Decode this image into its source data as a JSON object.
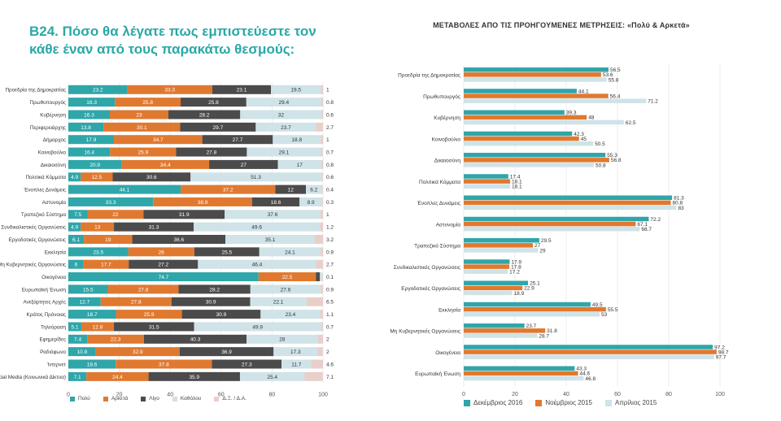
{
  "left_title": "B24. Πόσο θα λέγατε πως εμπιστεύεστε τον κάθε έναν από τους παρακάτω θεσμούς:",
  "right_title": "ΜΕΤΑΒΟΛΕΣ ΑΠΟ ΤΙΣ ΠΡΟΗΓΟΥΜΕΝΕΣ ΜΕΤΡΗΣΕΙΣ: «Πολύ & Αρκετά»",
  "colors": {
    "s1": "#2fa6a9",
    "s2": "#e07930",
    "s3": "#4b4b4b",
    "s4": "#cfe3e8",
    "s5": "#e9cfc9",
    "r1": "#2fa6a9",
    "r2": "#e07930",
    "r3": "#cfe3e8"
  },
  "chart_data": [
    {
      "type": "bar",
      "orientation": "horizontal",
      "stacked": true,
      "title": "B24. Πόσο θα λέγατε πως εμπιστεύεστε τον κάθε έναν από τους παρακάτω θεσμούς:",
      "xlim": [
        0,
        100
      ],
      "xticks": [
        "0",
        "20",
        "40",
        "60",
        "80",
        "100"
      ],
      "categories": [
        "Προεδρία της Δημοκρατίας",
        "Πρωθυπουργός",
        "Κυβέρνηση",
        "Περιφερειάρχης",
        "Δήμαρχος",
        "Κοινοβούλιο",
        "Δικαιοσύνη",
        "Πολιτικά Κόμματα",
        "Ένοπλες Δυνάμεις",
        "Αστυνομία",
        "Τραπεζικό Σύστημα",
        "Συνδικαλιστικές Οργανώσεις",
        "Εργοδοτικές Οργανώσεις",
        "Εκκλησία",
        "Μη Κυβερνητικές Οργανώσεις",
        "Οικογένεια",
        "Ευρωπαϊκή Ένωση",
        "Ανεξάρτητες Αρχές",
        "Κράτος Πρόνοιας",
        "Τηλεόραση",
        "Εφημερίδες",
        "Ραδιόφωνο",
        "Ίντερνετ",
        "Social Media (Κοινωνικά Δίκτυα)"
      ],
      "series": [
        {
          "name": "Πολύ",
          "values": [
            23.2,
            18.3,
            16.3,
            13.8,
            17.9,
            16.4,
            20.9,
            4.9,
            44.1,
            33.3,
            7.5,
            4.9,
            6.1,
            23.5,
            6,
            74.7,
            15.5,
            12.7,
            18.7,
            5.1,
            7.4,
            10.8,
            18.6,
            7.1
          ]
        },
        {
          "name": "Αρκετά",
          "values": [
            33.3,
            25.8,
            23,
            30.1,
            34.7,
            25.9,
            34.4,
            12.5,
            37.2,
            38.9,
            22,
            13,
            19,
            26,
            17.7,
            22.5,
            27.8,
            27.8,
            25.9,
            12.8,
            22.3,
            32.9,
            37.8,
            24.4
          ]
        },
        {
          "name": "Λίγο",
          "values": [
            23.1,
            25.8,
            28.2,
            29.7,
            27.7,
            27.8,
            27,
            30.6,
            12,
            18.6,
            31.9,
            31.3,
            36.6,
            25.5,
            27.2,
            1.6,
            28.2,
            30.9,
            30.9,
            31.5,
            40.3,
            36.9,
            27.3,
            35.9
          ]
        },
        {
          "name": "Καθόλου",
          "values": [
            19.5,
            29.4,
            32,
            23.7,
            18.8,
            29.1,
            17,
            51.3,
            6.2,
            8.9,
            37.6,
            49.6,
            35.1,
            24.1,
            46.4,
            1,
            27.6,
            22.1,
            23.4,
            49.9,
            28,
            17.3,
            11.7,
            25.4
          ]
        },
        {
          "name": "Δ.Ξ. / Δ.Α.",
          "values": [
            1,
            0.8,
            0.6,
            2.7,
            1,
            0.7,
            0.8,
            0.6,
            0.4,
            0.3,
            1,
            1.2,
            3.2,
            0.9,
            2.7,
            0.1,
            0.9,
            6.5,
            1.1,
            0.7,
            2,
            2,
            4.6,
            7.1
          ]
        }
      ],
      "legend": [
        "Πολύ",
        "Αρκετά",
        "Λίγο",
        "Καθόλου",
        "Δ.Ξ. / Δ.Α."
      ],
      "legend_position": "bottom"
    },
    {
      "type": "bar",
      "orientation": "horizontal",
      "stacked": false,
      "title": "ΜΕΤΑΒΟΛΕΣ ΑΠΟ ΤΙΣ ΠΡΟΗΓΟΥΜΕΝΕΣ ΜΕΤΡΗΣΕΙΣ: «Πολύ & Αρκετά»",
      "xlim": [
        0,
        100
      ],
      "xticks": [
        "0",
        "20",
        "40",
        "60",
        "80",
        "100"
      ],
      "categories": [
        "Προεδρία της Δημοκρατίας",
        "Πρωθυπουργός",
        "Κυβέρνηση",
        "Κοινοβούλιο",
        "Δικαιοσύνη",
        "Πολιτικά Κόμματα",
        "Ένοπλες Δυνάμεις",
        "Αστυνομία",
        "Τραπεζικό Σύστημα",
        "Συνδικαλιστικές Οργανώσεις",
        "Εργοδοτικές Οργανώσεις",
        "Εκκλησία",
        "Μη Κυβερνητικές Οργανώσεις",
        "Οικογένεια",
        "Ευρωπαϊκή Ένωση"
      ],
      "series": [
        {
          "name": "Δεκέμβριος 2016",
          "values": [
            56.5,
            44.1,
            39.3,
            42.3,
            55.3,
            17.4,
            81.3,
            72.2,
            29.5,
            17.9,
            25.1,
            49.5,
            23.7,
            97.2,
            43.3
          ]
        },
        {
          "name": "Νοέμβριος 2015",
          "values": [
            53.6,
            56.4,
            48,
            45,
            56.8,
            18.1,
            80.8,
            67.1,
            27,
            17.8,
            22.9,
            55.5,
            31.8,
            98.7,
            44.6
          ]
        },
        {
          "name": "Απρίλιος 2015",
          "values": [
            55.8,
            71.2,
            62.5,
            50.5,
            50.8,
            18.1,
            83,
            68.7,
            29,
            17.2,
            18.9,
            53,
            28.7,
            97.7,
            46.8
          ]
        }
      ],
      "legend": [
        "Δεκέμβριος 2016",
        "Νοέμβριος 2015",
        "Απρίλιος 2015"
      ],
      "legend_position": "bottom"
    }
  ]
}
